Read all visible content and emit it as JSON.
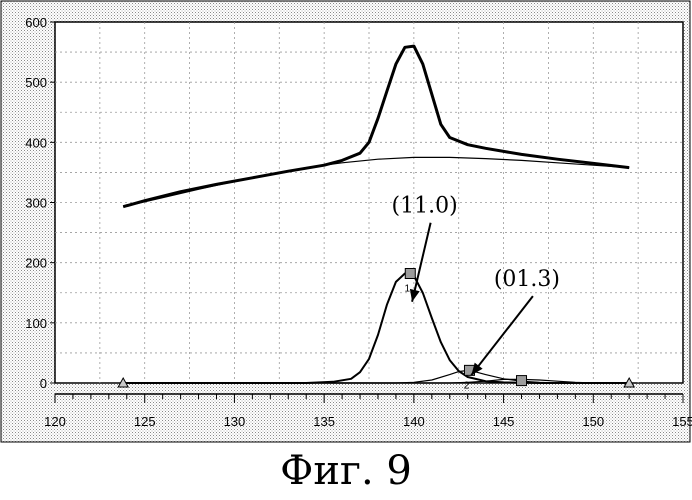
{
  "caption": "Фиг. 9",
  "chart_data": {
    "type": "line",
    "xlim": [
      120,
      155
    ],
    "ylim": [
      0,
      600
    ],
    "xticks": [
      "120",
      "125",
      "130",
      "135",
      "140",
      "145",
      "150",
      "155"
    ],
    "yticks": [
      "0",
      "100",
      "200",
      "300",
      "400",
      "500",
      "600"
    ],
    "grid": true,
    "series": [
      {
        "role": "measured spectrum",
        "x": [
          123.8,
          125,
          127,
          129,
          131,
          133,
          135,
          136,
          137,
          137.5,
          138,
          138.5,
          139,
          139.5,
          140,
          140.5,
          141,
          141.5,
          142,
          143,
          144,
          145,
          146,
          148,
          150,
          152
        ],
        "y": [
          293,
          303,
          318,
          330,
          341,
          352,
          362,
          370,
          382,
          400,
          440,
          485,
          530,
          558,
          560,
          530,
          480,
          430,
          408,
          396,
          390,
          385,
          380,
          372,
          365,
          358
        ]
      },
      {
        "role": "baseline",
        "x": [
          123.8,
          126,
          128,
          130,
          132,
          134,
          136,
          138,
          140,
          142,
          144,
          146,
          148,
          150,
          152
        ],
        "y": [
          293,
          308,
          322,
          335,
          347,
          358,
          366,
          372,
          375,
          375,
          373,
          370,
          366,
          362,
          358
        ]
      },
      {
        "role": "fitted peak 1",
        "x": [
          123.8,
          134,
          135.5,
          136.5,
          137,
          137.5,
          138,
          138.5,
          139,
          139.5,
          140,
          140.5,
          141,
          141.5,
          142,
          142.5,
          143,
          144,
          145,
          147,
          152
        ],
        "y": [
          0,
          0,
          2,
          7,
          18,
          40,
          80,
          130,
          168,
          182,
          178,
          150,
          108,
          68,
          38,
          20,
          10,
          3,
          1,
          0,
          0
        ]
      },
      {
        "role": "fitted peak 2",
        "x": [
          123.8,
          139,
          140,
          141,
          142,
          142.5,
          143,
          143.5,
          144,
          145,
          146,
          147,
          148,
          152
        ],
        "y": [
          0,
          0,
          1,
          5,
          14,
          19,
          21,
          18,
          14,
          7,
          3,
          1,
          0,
          0
        ]
      },
      {
        "role": "fitted peak 3",
        "x": [
          123.8,
          142,
          143,
          144,
          145,
          146,
          147,
          148,
          149,
          150,
          152
        ],
        "y": [
          0,
          0,
          1,
          3,
          6,
          6,
          5,
          3,
          1,
          0,
          0
        ]
      }
    ],
    "markers": [
      {
        "shape": "triangle",
        "x": 123.8,
        "y": 0
      },
      {
        "shape": "triangle",
        "x": 152,
        "y": 0
      },
      {
        "shape": "square",
        "x": 139.8,
        "y": 182,
        "label": "1"
      },
      {
        "shape": "square",
        "x": 143.1,
        "y": 21,
        "label": "2"
      },
      {
        "shape": "square",
        "x": 146,
        "y": 4
      }
    ],
    "annotations": [
      {
        "text": "(11.0)",
        "x": 140.6,
        "y": 283,
        "arrow_to": [
          139.9,
          135
        ]
      },
      {
        "text": "(01.3)",
        "x": 146.3,
        "y": 161,
        "arrow_to": [
          143.2,
          13
        ]
      }
    ]
  }
}
